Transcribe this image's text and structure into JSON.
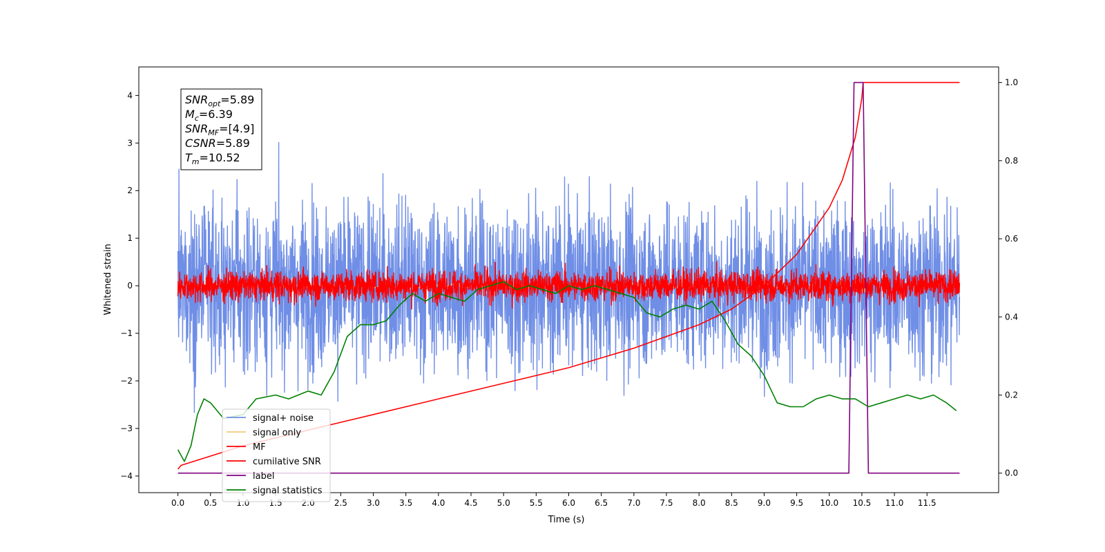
{
  "chart_data": {
    "type": "line",
    "xlabel": "Time (s)",
    "ylabel": "Whitened strain",
    "xlim": [
      -0.6,
      12.6
    ],
    "ylim": [
      -4.35,
      4.6
    ],
    "y2lim": [
      -0.05,
      1.04
    ],
    "grid": false,
    "legend_position": "lower-left",
    "x_ticks": [
      "0.0",
      "0.5",
      "1.0",
      "1.5",
      "2.0",
      "2.5",
      "3.0",
      "3.5",
      "4.0",
      "4.5",
      "5.0",
      "5.5",
      "6.0",
      "6.5",
      "7.0",
      "7.5",
      "8.0",
      "8.5",
      "9.0",
      "9.5",
      "10.0",
      "10.5",
      "11.0",
      "11.5"
    ],
    "y_ticks": [
      "−4",
      "−3",
      "−2",
      "−1",
      "0",
      "1",
      "2",
      "3",
      "4"
    ],
    "y2_ticks": [
      "0.0",
      "0.2",
      "0.4",
      "0.6",
      "0.8",
      "1.0"
    ],
    "annotation": [
      {
        "base": "SNR",
        "sub": "opt",
        "value": "=5.89"
      },
      {
        "base": "M",
        "sub": "c",
        "value": "=6.39"
      },
      {
        "base": "SNR",
        "sub": "MF",
        "value": "=[4.9]"
      },
      {
        "base": "CSNR",
        "sub": "",
        "value": "=5.89"
      },
      {
        "base": "T",
        "sub": "m",
        "value": "=10.52"
      }
    ],
    "series": [
      {
        "name": "signal+ noise",
        "color": "#6f8ee6",
        "axis": "left",
        "kind": "noise",
        "amplitude": 2.2,
        "x_range": [
          0.0,
          12.0
        ]
      },
      {
        "name": "signal only",
        "color": "#f5c97a",
        "axis": "left",
        "kind": "chirp",
        "x_range": [
          0.0,
          10.55
        ]
      },
      {
        "name": "MF",
        "color": "#ff0000",
        "axis": "left",
        "kind": "noise",
        "amplitude": 0.4,
        "x_range": [
          0.0,
          12.0
        ]
      },
      {
        "name": "cumilative SNR",
        "color": "#ff0000",
        "axis": "right",
        "x": [
          0.0,
          0.05,
          1.0,
          2.0,
          3.0,
          4.0,
          5.0,
          6.0,
          7.0,
          8.0,
          8.5,
          9.0,
          9.5,
          10.0,
          10.2,
          10.4,
          10.5,
          10.52,
          12.0
        ],
        "y": [
          0.01,
          0.02,
          0.07,
          0.11,
          0.15,
          0.19,
          0.23,
          0.27,
          0.32,
          0.38,
          0.42,
          0.48,
          0.56,
          0.68,
          0.75,
          0.86,
          0.96,
          1.0,
          1.0
        ]
      },
      {
        "name": "label",
        "color": "#800080",
        "axis": "right",
        "x": [
          0.0,
          10.3,
          10.38,
          10.52,
          10.6,
          12.0
        ],
        "y": [
          0.0,
          0.0,
          1.0,
          1.0,
          0.0,
          0.0
        ]
      },
      {
        "name": "signal statistics",
        "color": "#008000",
        "axis": "right",
        "x": [
          0.0,
          0.1,
          0.2,
          0.3,
          0.4,
          0.5,
          0.7,
          1.0,
          1.2,
          1.5,
          1.7,
          2.0,
          2.2,
          2.4,
          2.6,
          2.8,
          3.0,
          3.2,
          3.4,
          3.6,
          3.8,
          4.0,
          4.2,
          4.4,
          4.6,
          4.8,
          5.0,
          5.2,
          5.4,
          5.6,
          5.8,
          6.0,
          6.2,
          6.4,
          6.6,
          6.8,
          7.0,
          7.2,
          7.4,
          7.6,
          7.8,
          8.0,
          8.2,
          8.4,
          8.6,
          8.8,
          9.0,
          9.2,
          9.4,
          9.6,
          9.8,
          10.0,
          10.2,
          10.4,
          10.6,
          10.8,
          11.0,
          11.2,
          11.4,
          11.6,
          11.8,
          11.95
        ],
        "y": [
          0.06,
          0.03,
          0.07,
          0.15,
          0.19,
          0.18,
          0.14,
          0.15,
          0.19,
          0.2,
          0.19,
          0.21,
          0.2,
          0.26,
          0.35,
          0.38,
          0.38,
          0.39,
          0.43,
          0.46,
          0.44,
          0.46,
          0.45,
          0.44,
          0.47,
          0.48,
          0.49,
          0.47,
          0.48,
          0.47,
          0.46,
          0.48,
          0.47,
          0.48,
          0.47,
          0.46,
          0.45,
          0.41,
          0.4,
          0.42,
          0.43,
          0.42,
          0.44,
          0.39,
          0.33,
          0.3,
          0.25,
          0.18,
          0.17,
          0.17,
          0.19,
          0.2,
          0.19,
          0.19,
          0.17,
          0.18,
          0.19,
          0.2,
          0.19,
          0.2,
          0.18,
          0.16
        ]
      }
    ]
  }
}
